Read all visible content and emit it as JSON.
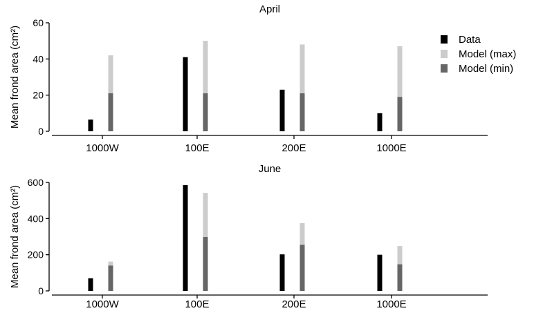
{
  "colors": {
    "data": "#000000",
    "model_max": "#cccccc",
    "model_min": "#666666"
  },
  "legend": {
    "placement": "top-right",
    "items": [
      "Data",
      "Model (max)",
      "Model (min)"
    ]
  },
  "chart_data": [
    {
      "type": "bar",
      "title": "April",
      "ylabel": "Mean frond area (cm²)",
      "ylim": [
        0,
        60
      ],
      "yticks": [
        0,
        20,
        40,
        60
      ],
      "categories": [
        "1000W",
        "100E",
        "200E",
        "1000E"
      ],
      "series": [
        {
          "name": "Data",
          "values": [
            6.5,
            41,
            23,
            10
          ]
        },
        {
          "name": "Model (max)",
          "values": [
            42,
            50,
            48,
            47
          ]
        },
        {
          "name": "Model (min)",
          "values": [
            21,
            21,
            21,
            19
          ]
        }
      ]
    },
    {
      "type": "bar",
      "title": "June",
      "ylabel": "Mean frond area (cm²)",
      "ylim": [
        0,
        600
      ],
      "yticks": [
        0,
        200,
        400,
        600
      ],
      "categories": [
        "1000W",
        "100E",
        "200E",
        "1000E"
      ],
      "series": [
        {
          "name": "Data",
          "values": [
            70,
            585,
            202,
            200
          ]
        },
        {
          "name": "Model (max)",
          "values": [
            162,
            542,
            375,
            248
          ]
        },
        {
          "name": "Model (min)",
          "values": [
            140,
            298,
            255,
            147
          ]
        }
      ]
    }
  ]
}
